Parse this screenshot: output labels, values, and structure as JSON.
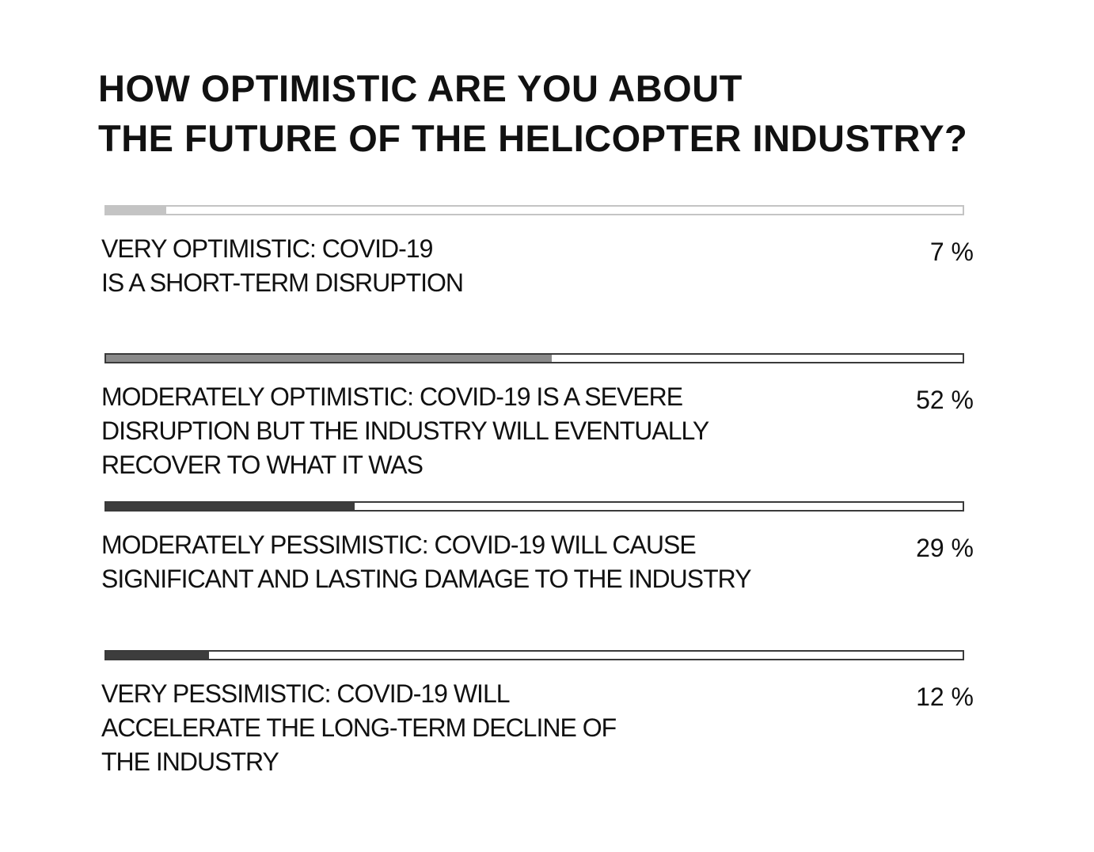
{
  "chart_data": {
    "type": "bar",
    "orientation": "horizontal",
    "title_lines": [
      "HOW OPTIMISTIC ARE YOU ABOUT",
      "THE FUTURE OF THE HELICOPTER INDUSTRY?"
    ],
    "xlim": [
      0,
      100
    ],
    "unit": "%",
    "grid": false,
    "bars": [
      {
        "label_lines": [
          "VERY OPTIMISTIC: COVID-19",
          "IS A SHORT-TERM DISRUPTION"
        ],
        "value": 7,
        "value_text": "7 %",
        "color": "#c4c4c4",
        "track_color": "#c4c4c4"
      },
      {
        "label_lines": [
          "MODERATELY OPTIMISTIC:  COVID-19 IS A SEVERE",
          "DISRUPTION BUT THE INDUSTRY WILL  EVENTUALLY",
          "RECOVER TO WHAT IT WAS"
        ],
        "value": 52,
        "value_text": "52 %",
        "color": "#8a8a8a",
        "track_color": "#3a3a3a"
      },
      {
        "label_lines": [
          "MODERATELY PESSIMISTIC:  COVID-19 WILL CAUSE",
          "SIGNIFICANT AND LASTING DAMAGE TO THE INDUSTRY"
        ],
        "value": 29,
        "value_text": "29 %",
        "color": "#3d3d3d",
        "track_color": "#3a3a3a"
      },
      {
        "label_lines": [
          "VERY PESSIMISTIC: COVID-19 WILL",
          "ACCELERATE THE LONG-TERM DECLINE OF",
          "THE INDUSTRY"
        ],
        "value": 12,
        "value_text": "12 %",
        "color": "#3d3d3d",
        "track_color": "#3a3a3a"
      }
    ]
  }
}
